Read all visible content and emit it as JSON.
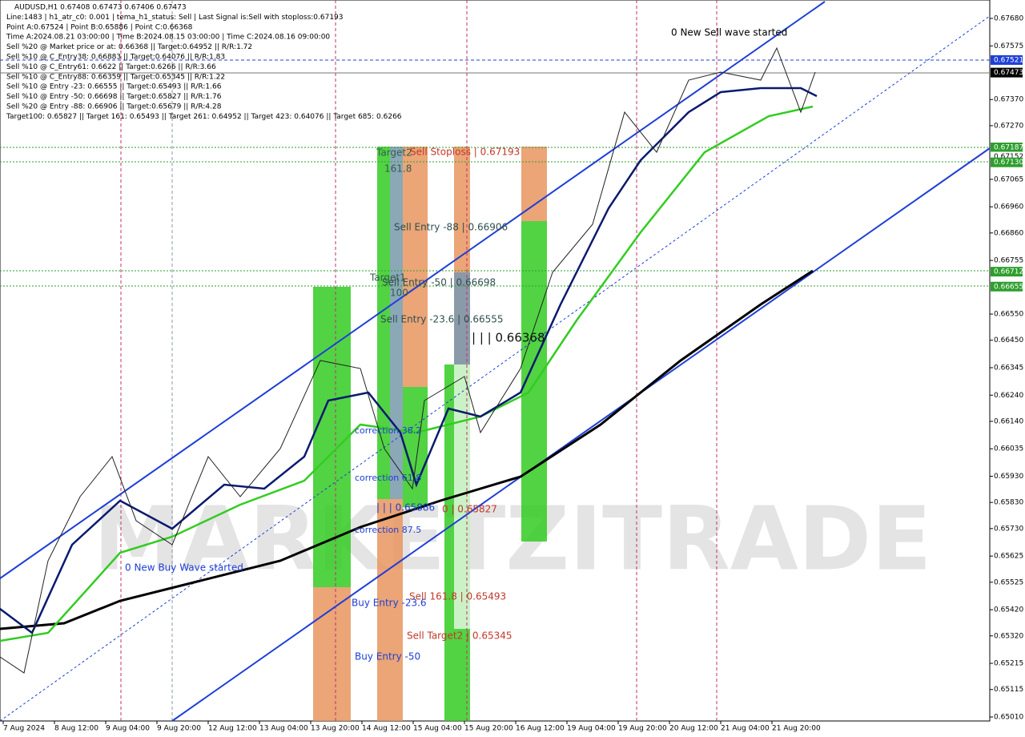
{
  "header": {
    "lines": [
      "AUDUSD,H1  0.67408 0.67473 0.67406 0.67473",
      "Line:1483 | h1_atr_c0: 0.001 | tema_h1_status: Sell | Last Signal is:Sell with stoploss:0.67193",
      "Point A:0.67524 | Point B:0.65886 | Point C:0.66368",
      "Time A:2024.08.21 03:00:00 | Time B:2024.08.15 03:00:00 | Time C:2024.08.16 09:00:00",
      "Sell %20 @ Market price or at: 0.66368 || Target:0.64952 || R/R:1.72",
      "Sell %10 @ C_Entry38: 0.66883 || Target:0.64076 || R/R:1.83",
      "Sell %10 @ C_Entry61: 0.6622 || Target:0.6266 || R/R:3.66",
      "Sell %10 @ C_Entry88: 0.66359 || Target:0.65345 || R/R:1.22",
      "Sell %10 @ Entry -23: 0.66555 || Target:0.65493 || R/R:1.66",
      "Sell %10 @ Entry -50: 0.66698 || Target:0.65827 || R/R:1.76",
      "Sell %20 @ Entry -88: 0.66906 || Target:0.65679 || R/R:4.28",
      "Target100: 0.65827 || Target 161: 0.65493 || Target 261: 0.64952 || Target 423: 0.64076 || Target 685: 0.6266"
    ]
  },
  "price_axis": {
    "labels": [
      "0.67680",
      "0.67575",
      "0.67370",
      "0.67270",
      "0.67065",
      "0.66960",
      "0.66860",
      "0.66755",
      "0.66550",
      "0.66450",
      "0.66345",
      "0.66240",
      "0.66140",
      "0.66035",
      "0.65930",
      "0.65830",
      "0.65730",
      "0.65625",
      "0.65525",
      "0.65420",
      "0.65320",
      "0.65215",
      "0.65115",
      "0.65010"
    ],
    "highlights": [
      {
        "label": "0.67521",
        "color": "#1f3fd6"
      },
      {
        "label": "0.67473",
        "color": "#000000"
      },
      {
        "label": "0.67187",
        "color": "#2e9e2e"
      },
      {
        "label": "0.67152",
        "color": "#ffffff"
      },
      {
        "label": "0.67130",
        "color": "#2e9e2e"
      },
      {
        "label": "0.66712",
        "color": "#2e9e2e"
      },
      {
        "label": "0.66655",
        "color": "#2e9e2e"
      }
    ]
  },
  "time_axis": {
    "labels": [
      "7 Aug 2024",
      "8 Aug 12:00",
      "9 Aug 04:00",
      "9 Aug 20:00",
      "12 Aug 12:00",
      "13 Aug 04:00",
      "13 Aug 20:00",
      "14 Aug 12:00",
      "15 Aug 04:00",
      "15 Aug 20:00",
      "16 Aug 12:00",
      "19 Aug 04:00",
      "19 Aug 20:00",
      "20 Aug 12:00",
      "21 Aug 04:00",
      "21 Aug 20:00"
    ]
  },
  "annotations": [
    "0 New Sell wave started",
    "Target2",
    "161.8",
    "Sell Stoploss | 0.67193",
    "Sell Entry -88 | 0.66906",
    "Target1",
    "100",
    "Sell Entry -50 | 0.66698",
    "Sell Entry -23.6 | 0.66555",
    "| | | 0.66368",
    "correction 38.2",
    "correction 61.8",
    "| | | 0.65886",
    "0 | 0.65827",
    "correction 87.5",
    "0 New Buy Wave started",
    "Sell 161.8 | 0.65493",
    "Buy Entry -23.6",
    "Sell Target2 | 0.65345",
    "Buy Entry -50"
  ]
}
